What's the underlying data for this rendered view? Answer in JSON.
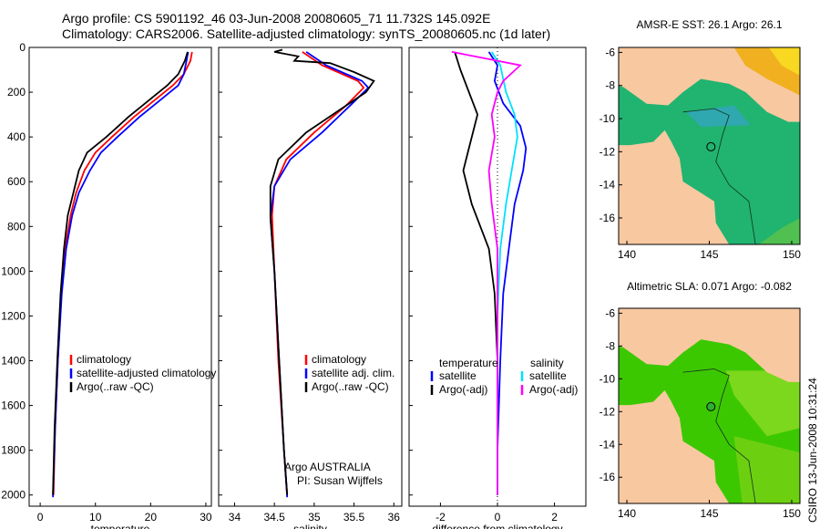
{
  "title_line1": "Argo profile: CS 5901192_46 03-Jun-2008 20080605_71 11.732S 145.092E",
  "title_line2": "Climatology: CARS2006. Satellite-adjusted climatology: synTS_20080605.nc (1d later)",
  "credit": "CSIRO 13-Jun-2008 10:31:24",
  "argo_label": "Argo AUSTRALIA",
  "pi_label": "PI: Susan Wijffels",
  "colors": {
    "climatology": "#ff0000",
    "satellite": "#0000ff",
    "argo": "#000000",
    "sal_satellite": "#00e0ff",
    "sal_argo": "#ff00ff"
  },
  "chart_data": [
    {
      "type": "line",
      "xlabel": "temperature",
      "ylim": [
        2050,
        0
      ],
      "xlim": [
        -2,
        31
      ],
      "xticks": [
        0,
        10,
        20,
        30
      ],
      "yticks": [
        0,
        200,
        400,
        600,
        800,
        1000,
        1200,
        1400,
        1600,
        1800,
        2000
      ],
      "legend": [
        "climatology",
        "satellite-adjusted climatology",
        "Argo(..raw -QC)"
      ],
      "series": [
        {
          "name": "climatology",
          "color": "#ff0000",
          "points": [
            [
              27.5,
              20
            ],
            [
              27.2,
              60
            ],
            [
              26,
              120
            ],
            [
              24,
              170
            ],
            [
              21,
              230
            ],
            [
              17,
              310
            ],
            [
              13,
              400
            ],
            [
              10,
              470
            ],
            [
              8,
              550
            ],
            [
              6.5,
              650
            ],
            [
              5.5,
              750
            ],
            [
              4.5,
              900
            ],
            [
              3.8,
              1100
            ],
            [
              3.2,
              1400
            ],
            [
              2.7,
              1700
            ],
            [
              2.4,
              2000
            ]
          ]
        },
        {
          "name": "satellite-adjusted climatology",
          "color": "#0000ff",
          "points": [
            [
              26.8,
              20
            ],
            [
              26.5,
              60
            ],
            [
              26,
              120
            ],
            [
              25,
              170
            ],
            [
              22,
              230
            ],
            [
              18,
              310
            ],
            [
              14,
              400
            ],
            [
              11,
              470
            ],
            [
              9,
              550
            ],
            [
              7,
              650
            ],
            [
              5.8,
              750
            ],
            [
              4.7,
              900
            ],
            [
              3.9,
              1100
            ],
            [
              3.2,
              1400
            ],
            [
              2.7,
              1700
            ],
            [
              2.3,
              2010
            ]
          ]
        },
        {
          "name": "Argo(..raw -QC)",
          "color": "#000000",
          "points": [
            [
              26.7,
              20
            ],
            [
              26.2,
              60
            ],
            [
              25,
              120
            ],
            [
              23,
              170
            ],
            [
              20,
              230
            ],
            [
              16,
              310
            ],
            [
              12,
              400
            ],
            [
              8.5,
              470
            ],
            [
              7,
              550
            ],
            [
              6,
              650
            ],
            [
              5,
              750
            ],
            [
              4.3,
              900
            ],
            [
              3.7,
              1100
            ],
            [
              3.1,
              1400
            ],
            [
              2.6,
              1700
            ],
            [
              2.3,
              2000
            ]
          ]
        }
      ]
    },
    {
      "type": "line",
      "xlabel": "salinity",
      "ylim": [
        2050,
        0
      ],
      "xlim": [
        33.8,
        36.1
      ],
      "xticks": [
        34,
        34.5,
        35,
        35.5,
        36
      ],
      "legend": [
        "climatology",
        "satellite adj. clim.",
        "Argo(..raw -QC)"
      ],
      "series": [
        {
          "name": "climatology",
          "color": "#ff0000",
          "points": [
            [
              34.85,
              20
            ],
            [
              35.1,
              80
            ],
            [
              35.55,
              150
            ],
            [
              35.62,
              180
            ],
            [
              35.4,
              260
            ],
            [
              35.0,
              380
            ],
            [
              34.65,
              500
            ],
            [
              34.5,
              620
            ],
            [
              34.47,
              750
            ],
            [
              34.5,
              1000
            ],
            [
              34.55,
              1400
            ],
            [
              34.62,
              1800
            ],
            [
              34.66,
              2000
            ]
          ]
        },
        {
          "name": "satellite adj. clim.",
          "color": "#0000ff",
          "points": [
            [
              34.9,
              20
            ],
            [
              35.15,
              80
            ],
            [
              35.6,
              150
            ],
            [
              35.68,
              180
            ],
            [
              35.45,
              260
            ],
            [
              35.1,
              380
            ],
            [
              34.7,
              500
            ],
            [
              34.5,
              620
            ],
            [
              34.45,
              760
            ],
            [
              34.5,
              1000
            ],
            [
              34.56,
              1400
            ],
            [
              34.62,
              1800
            ],
            [
              34.66,
              2010
            ]
          ]
        },
        {
          "name": "Argo(..raw -QC)",
          "color": "#000000",
          "points": [
            [
              34.6,
              10
            ],
            [
              34.5,
              20
            ],
            [
              34.8,
              40
            ],
            [
              34.75,
              60
            ],
            [
              35.2,
              70
            ],
            [
              35.5,
              110
            ],
            [
              35.75,
              150
            ],
            [
              35.65,
              200
            ],
            [
              35.4,
              260
            ],
            [
              34.9,
              380
            ],
            [
              34.55,
              500
            ],
            [
              34.45,
              620
            ],
            [
              34.45,
              760
            ],
            [
              34.5,
              1000
            ],
            [
              34.56,
              1400
            ],
            [
              34.62,
              1800
            ],
            [
              34.66,
              2000
            ]
          ]
        }
      ]
    },
    {
      "type": "line",
      "xlabel": "difference from climatology",
      "ylim": [
        2050,
        0
      ],
      "xlim": [
        -3.1,
        3.1
      ],
      "xticks": [
        -2,
        0,
        2
      ],
      "legend": [
        "temperature",
        "satellite",
        "Argo(-adj)",
        "salinity",
        "satellite",
        "Argo(-adj)"
      ],
      "series": [
        {
          "name": "satellite",
          "color": "#0000ff",
          "points": [
            [
              -0.3,
              20
            ],
            [
              0,
              80
            ],
            [
              -0.1,
              150
            ],
            [
              0.2,
              250
            ],
            [
              0.8,
              350
            ],
            [
              1.0,
              450
            ],
            [
              0.9,
              550
            ],
            [
              0.6,
              700
            ],
            [
              0.4,
              900
            ],
            [
              0.2,
              1100
            ],
            [
              0.1,
              1400
            ],
            [
              0,
              1800
            ],
            [
              0,
              2000
            ]
          ]
        },
        {
          "name": "Argo(-adj)",
          "color": "#000000",
          "points": [
            [
              -1.5,
              20
            ],
            [
              -1.3,
              100
            ],
            [
              -1.0,
              200
            ],
            [
              -0.7,
              300
            ],
            [
              -1.0,
              450
            ],
            [
              -1.2,
              550
            ],
            [
              -0.9,
              700
            ],
            [
              -0.3,
              900
            ],
            [
              -0.1,
              1100
            ],
            [
              0,
              1400
            ],
            [
              0,
              1800
            ],
            [
              0,
              2000
            ]
          ]
        },
        {
          "name": "satellite",
          "color": "#00e0ff",
          "points": [
            [
              -0.2,
              20
            ],
            [
              0.1,
              80
            ],
            [
              0.3,
              200
            ],
            [
              0.6,
              300
            ],
            [
              0.7,
              400
            ],
            [
              0.5,
              550
            ],
            [
              0.3,
              700
            ],
            [
              0.1,
              900
            ],
            [
              0,
              1200
            ],
            [
              0,
              2000
            ]
          ]
        },
        {
          "name": "Argo(-adj)",
          "color": "#ff00ff",
          "points": [
            [
              -1.6,
              20
            ],
            [
              0.8,
              80
            ],
            [
              0.2,
              150
            ],
            [
              0,
              200
            ],
            [
              -0.2,
              300
            ],
            [
              -0.1,
              400
            ],
            [
              -0.3,
              550
            ],
            [
              -0.2,
              700
            ],
            [
              0,
              900
            ],
            [
              0,
              1200
            ],
            [
              0,
              2000
            ]
          ]
        }
      ]
    },
    {
      "type": "heatmap",
      "title": "AMSR-E SST: 26.1 Argo: 26.1",
      "xticks": [
        140,
        145,
        150
      ],
      "yticks": [
        -6,
        -8,
        -10,
        -12,
        -14,
        -16
      ],
      "marker": [
        145.1,
        -11.7
      ]
    },
    {
      "type": "heatmap",
      "title": "Altimetric SLA: 0.071 Argo: -0.082",
      "xticks": [
        140,
        145,
        150
      ],
      "yticks": [
        -6,
        -8,
        -10,
        -12,
        -14,
        -16
      ],
      "marker": [
        145.1,
        -11.7
      ]
    }
  ]
}
